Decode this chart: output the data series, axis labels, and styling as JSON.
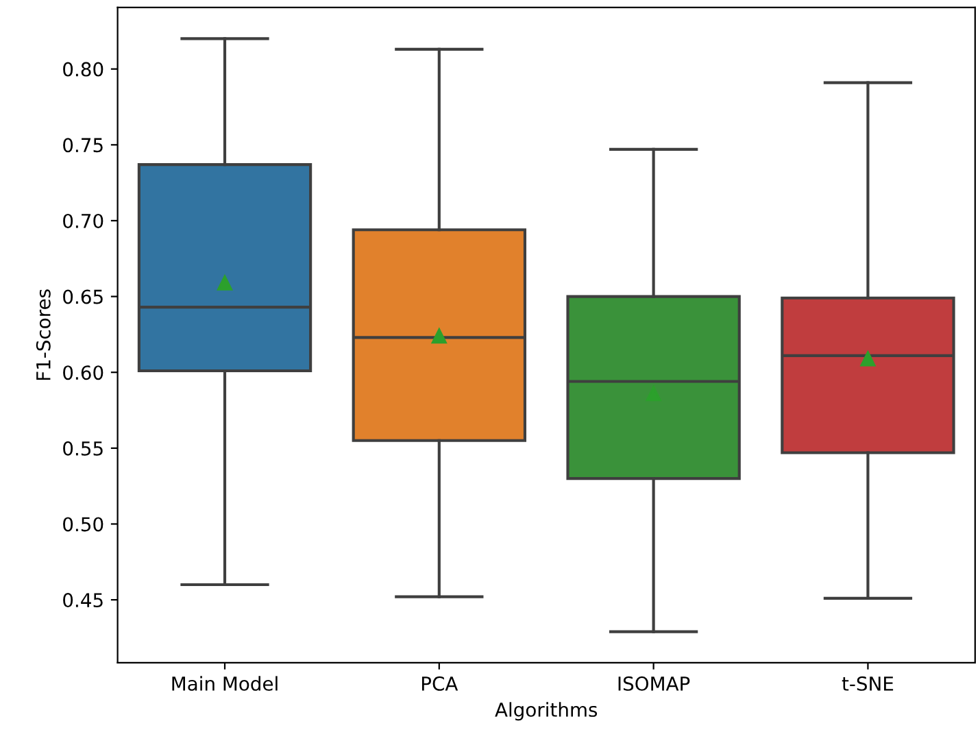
{
  "chart_data": {
    "type": "box",
    "xlabel": "Algorithms",
    "ylabel": "F1-Scores",
    "categories": [
      "Main Model",
      "PCA",
      "ISOMAP",
      "t-SNE"
    ],
    "colors": [
      "#3274a1",
      "#e1812c",
      "#3a923a",
      "#c03d3e"
    ],
    "boxes": [
      {
        "low": 0.46,
        "q1": 0.601,
        "median": 0.643,
        "q3": 0.737,
        "high": 0.82,
        "mean": 0.659
      },
      {
        "low": 0.452,
        "q1": 0.555,
        "median": 0.623,
        "q3": 0.694,
        "high": 0.813,
        "mean": 0.624
      },
      {
        "low": 0.429,
        "q1": 0.53,
        "median": 0.594,
        "q3": 0.65,
        "high": 0.747,
        "mean": 0.586
      },
      {
        "low": 0.451,
        "q1": 0.547,
        "median": 0.611,
        "q3": 0.649,
        "high": 0.791,
        "mean": 0.609
      }
    ],
    "ylim": [
      0.4085,
      0.8406
    ],
    "yticks": [
      0.45,
      {
        "value": 0.5,
        "label": "0.50"
      },
      0.55,
      {
        "value": 0.6,
        "label": "0.60"
      },
      0.65,
      {
        "value": 0.7,
        "label": "0.70"
      },
      0.75,
      {
        "value": 0.8,
        "label": "0.80"
      }
    ],
    "grid": false
  }
}
